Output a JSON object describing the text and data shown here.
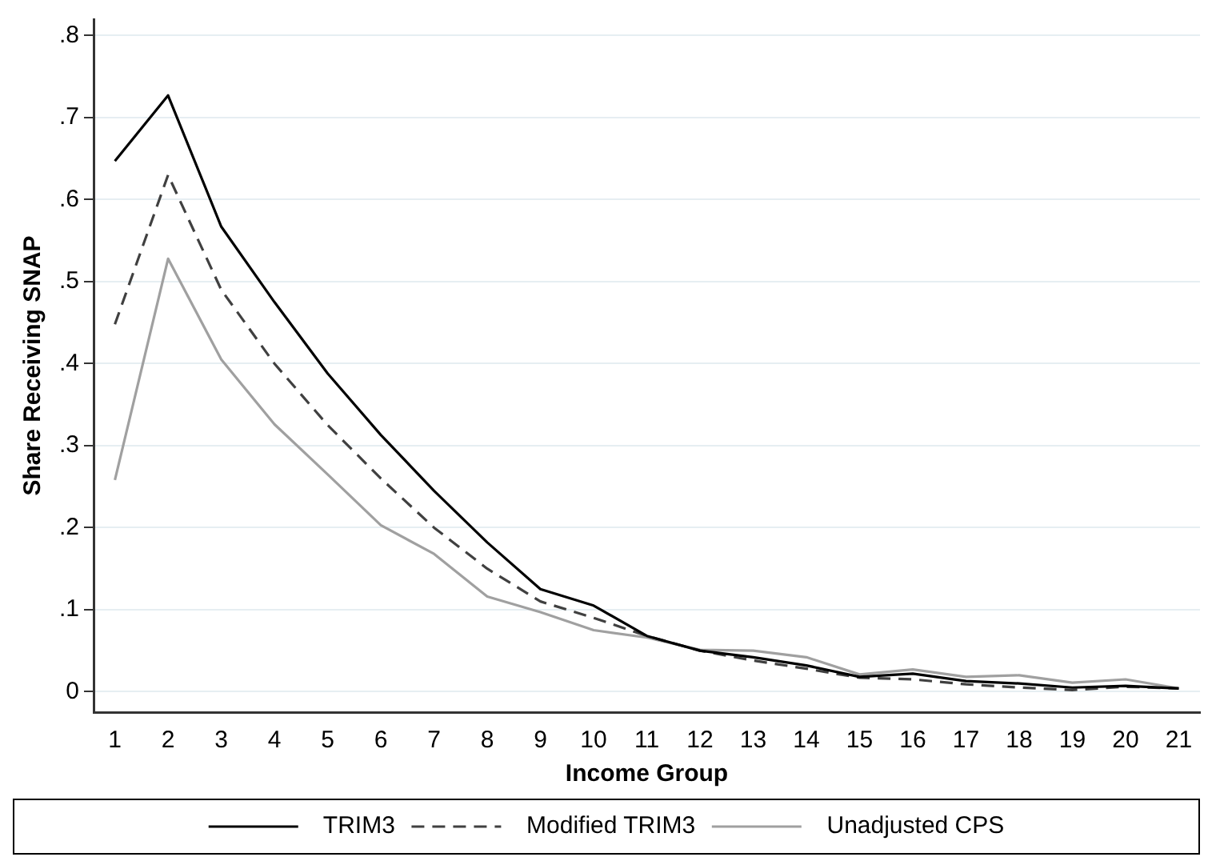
{
  "chart_data": {
    "type": "line",
    "xlabel": "Income Group",
    "ylabel": "Share Receiving SNAP",
    "x": [
      1,
      2,
      3,
      4,
      5,
      6,
      7,
      8,
      9,
      10,
      11,
      12,
      13,
      14,
      15,
      16,
      17,
      18,
      19,
      20,
      21
    ],
    "xlim": [
      0.6,
      21.4
    ],
    "xticks": [
      1,
      2,
      3,
      4,
      5,
      6,
      7,
      8,
      9,
      10,
      11,
      12,
      13,
      14,
      15,
      16,
      17,
      18,
      19,
      20,
      21
    ],
    "ylim": [
      -0.025,
      0.82
    ],
    "yticks": [
      0,
      {
        "value": 0.1,
        "label": ".1"
      },
      {
        "value": 0.2,
        "label": ".2"
      },
      {
        "value": 0.3,
        "label": ".3"
      },
      {
        "value": 0.4,
        "label": ".4"
      },
      {
        "value": 0.5,
        "label": ".5"
      },
      {
        "value": 0.6,
        "label": ".6"
      },
      {
        "value": 0.7,
        "label": ".7"
      },
      {
        "value": 0.8,
        "label": ".8"
      }
    ],
    "grid": "y",
    "legend": "bottom",
    "marker": "none",
    "series": [
      {
        "name": "TRIM3",
        "color": "#000000",
        "line_style": "solid",
        "values": [
          0.647,
          0.727,
          0.567,
          0.475,
          0.388,
          0.313,
          0.245,
          0.182,
          0.125,
          0.105,
          0.068,
          0.05,
          0.042,
          0.032,
          0.018,
          0.022,
          0.013,
          0.01,
          0.005,
          0.007,
          0.004
        ]
      },
      {
        "name": "Modified TRIM3",
        "color": "#404040",
        "line_style": "dashed",
        "values": [
          0.448,
          0.63,
          0.49,
          0.4,
          0.325,
          0.26,
          0.2,
          0.15,
          0.11,
          0.09,
          0.068,
          0.05,
          0.038,
          0.028,
          0.017,
          0.015,
          0.009,
          0.005,
          0.002,
          0.006,
          0.004
        ]
      },
      {
        "name": "Unadjusted CPS",
        "color": "#a0a0a0",
        "line_style": "solid",
        "values": [
          0.258,
          0.528,
          0.405,
          0.326,
          0.265,
          0.203,
          0.168,
          0.116,
          0.097,
          0.075,
          0.066,
          0.051,
          0.05,
          0.042,
          0.021,
          0.027,
          0.018,
          0.02,
          0.011,
          0.015,
          0.004
        ]
      }
    ]
  }
}
